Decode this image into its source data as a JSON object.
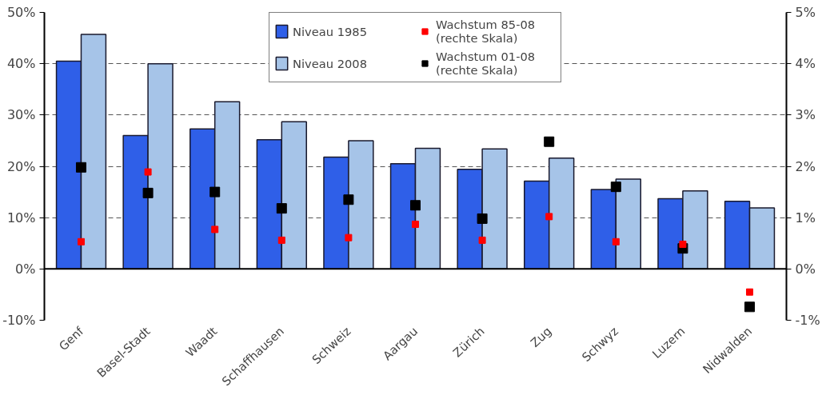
{
  "chart_data": {
    "type": "bar",
    "categories": [
      "Genf",
      "Basel-Stadt",
      "Waadt",
      "Schaffhausen",
      "Schweiz",
      "Aargau",
      "Zürich",
      "Zug",
      "Schwyz",
      "Luzern",
      "Nidwalden"
    ],
    "series": [
      {
        "name": "Niveau 1985",
        "color": "#2f5fe8",
        "values": [
          40.5,
          26.0,
          27.3,
          25.2,
          21.8,
          20.5,
          19.4,
          17.1,
          15.5,
          13.7,
          13.2
        ]
      },
      {
        "name": "Niveau 2008",
        "color": "#a6c4e8",
        "values": [
          45.7,
          40.0,
          32.6,
          28.7,
          25.0,
          23.5,
          23.4,
          21.6,
          17.5,
          15.2,
          11.9
        ]
      },
      {
        "name": "Wachstum 85-08\n(rechte Skala)",
        "type": "scatter",
        "marker": "square",
        "axis": "y2",
        "color": "#ff0000",
        "values": [
          0.53,
          1.89,
          0.77,
          0.56,
          0.61,
          0.87,
          0.56,
          1.02,
          0.53,
          0.48,
          -0.45
        ]
      },
      {
        "name": "Wachstum 01-08\n(rechte Skala)",
        "type": "scatter",
        "marker": "square",
        "axis": "y2",
        "color": "#000000",
        "values": [
          1.98,
          1.48,
          1.5,
          1.18,
          1.35,
          1.24,
          0.98,
          2.48,
          1.6,
          0.4,
          -0.74
        ]
      }
    ],
    "ylim": [
      -10,
      50
    ],
    "yticks": [
      {
        "value": -10,
        "label": "-10%"
      },
      {
        "value": 0,
        "label": "0%"
      },
      {
        "value": 10,
        "label": "10%"
      },
      {
        "value": 20,
        "label": "20%"
      },
      {
        "value": 30,
        "label": "30%"
      },
      {
        "value": 40,
        "label": "40%"
      },
      {
        "value": 50,
        "label": "50%"
      }
    ],
    "y2lim": [
      -1,
      5
    ],
    "y2ticks": [
      {
        "value": -1,
        "label": "-1%"
      },
      {
        "value": 0,
        "label": "0%"
      },
      {
        "value": 1,
        "label": "1%"
      },
      {
        "value": 2,
        "label": "2%"
      },
      {
        "value": 3,
        "label": "3%"
      },
      {
        "value": 4,
        "label": "4%"
      },
      {
        "value": 5,
        "label": "5%"
      }
    ],
    "grid": "y",
    "legend": "top"
  }
}
